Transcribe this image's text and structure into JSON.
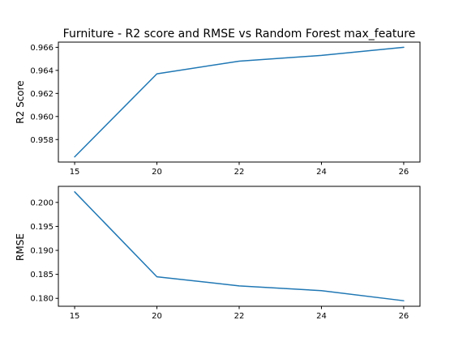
{
  "chart_data": [
    {
      "type": "line",
      "title": "Furniture - R2 score and RMSE vs Random Forest max_feature",
      "xlabel": "",
      "ylabel": "R2 Score",
      "x": [
        15,
        20,
        22,
        24,
        26
      ],
      "series": [
        {
          "values": [
            0.9565,
            0.9637,
            0.9648,
            0.9653,
            0.966
          ]
        }
      ],
      "x_tick_labels": [
        "15",
        "20",
        "22",
        "24",
        "26"
      ],
      "y_ticks": [
        0.958,
        0.96,
        0.962,
        0.964,
        0.966
      ],
      "y_tick_labels": [
        "0.958",
        "0.960",
        "0.962",
        "0.964",
        "0.966"
      ],
      "ylim": [
        0.95605,
        0.96645
      ],
      "grid": false,
      "color": "#1f77b4"
    },
    {
      "type": "line",
      "title": "",
      "xlabel": "",
      "ylabel": "RMSE",
      "x": [
        15,
        20,
        22,
        24,
        26
      ],
      "series": [
        {
          "values": [
            0.2022,
            0.1845,
            0.1826,
            0.1816,
            0.1795
          ]
        }
      ],
      "x_tick_labels": [
        "15",
        "20",
        "22",
        "24",
        "26"
      ],
      "y_ticks": [
        0.18,
        0.185,
        0.19,
        0.195,
        0.2
      ],
      "y_tick_labels": [
        "0.180",
        "0.185",
        "0.190",
        "0.195",
        "0.200"
      ],
      "ylim": [
        0.17835,
        0.20335
      ],
      "grid": false,
      "color": "#1f77b4"
    }
  ]
}
